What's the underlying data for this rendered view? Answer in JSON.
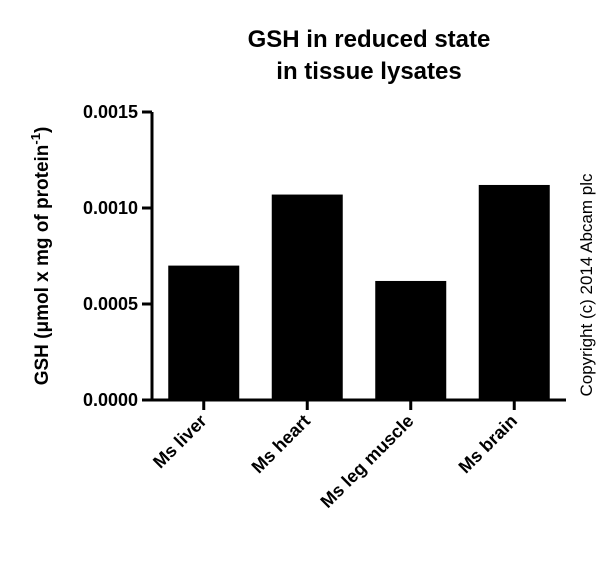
{
  "chart_data": {
    "type": "bar",
    "title_lines": [
      "GSH in reduced state",
      "in tissue lysates"
    ],
    "ylabel_main": "GSH (μmol x mg of protein",
    "ylabel_sup": "-1",
    "ylabel_close": ")",
    "xlabel": "",
    "categories": [
      "Ms liver",
      "Ms heart",
      "Ms leg muscle",
      "Ms brain"
    ],
    "values": [
      0.0007,
      0.00107,
      0.00062,
      0.00112
    ],
    "ylim": [
      0,
      0.0015
    ],
    "yticks": [
      0.0,
      0.0005,
      0.001,
      0.0015
    ],
    "ytick_labels": [
      "0.0000",
      "0.0005",
      "0.0010",
      "0.0015"
    ],
    "grid": false,
    "bar_color": "#000000"
  },
  "copyright": "Copyright (c) 2014 Abcam plc"
}
